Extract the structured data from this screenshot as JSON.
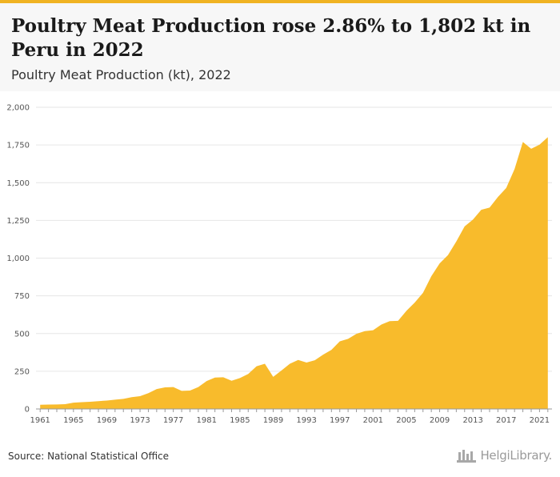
{
  "header": {
    "title": "Poultry Meat Production rose 2.86% to 1,802 kt in Peru in 2022",
    "subtitle": "Poultry Meat Production (kt), 2022"
  },
  "footer": {
    "source": "Source: National Statistical Office",
    "logo_text": "HelgiLibrary."
  },
  "colors": {
    "accent": "#f0b323",
    "area": "#f8bb2c",
    "grid": "#e6e6e6"
  },
  "chart_data": {
    "type": "area",
    "title": "Poultry Meat Production rose 2.86% to 1,802 kt in Peru in 2022",
    "subtitle": "Poultry Meat Production (kt), 2022",
    "xlabel": "",
    "ylabel": "",
    "ylim": [
      0,
      2000
    ],
    "yticks": [
      0,
      250,
      500,
      750,
      1000,
      1250,
      1500,
      1750,
      2000
    ],
    "ytick_labels": [
      "0",
      "250",
      "500",
      "750",
      "1,000",
      "1,250",
      "1,500",
      "1,750",
      "2,000"
    ],
    "xlim": [
      1960.5,
      2022.5
    ],
    "xticks": [
      1961,
      1965,
      1969,
      1973,
      1977,
      1981,
      1985,
      1989,
      1993,
      1997,
      2001,
      2005,
      2009,
      2013,
      2017,
      2021
    ],
    "xtick_labels": [
      "1961",
      "1965",
      "1969",
      "1973",
      "1977",
      "1981",
      "1985",
      "1989",
      "1993",
      "1997",
      "2001",
      "2005",
      "2009",
      "2013",
      "2017",
      "2021"
    ],
    "grid": true,
    "series": [
      {
        "x": [
          1961,
          1962,
          1963,
          1964,
          1965,
          1966,
          1967,
          1968,
          1969,
          1970,
          1971,
          1972,
          1973,
          1974,
          1975,
          1976,
          1977,
          1978,
          1979,
          1980,
          1981,
          1982,
          1983,
          1984,
          1985,
          1986,
          1987,
          1988,
          1989,
          1990,
          1991,
          1992,
          1993,
          1994,
          1995,
          1996,
          1997,
          1998,
          1999,
          2000,
          2001,
          2002,
          2003,
          2004,
          2005,
          2006,
          2007,
          2008,
          2009,
          2010,
          2011,
          2012,
          2013,
          2014,
          2015,
          2016,
          2017,
          2018,
          2019,
          2020,
          2021,
          2022
        ],
        "values": [
          28,
          29,
          30,
          32,
          42,
          45,
          48,
          52,
          56,
          62,
          67,
          78,
          85,
          105,
          132,
          143,
          145,
          120,
          122,
          145,
          185,
          208,
          210,
          187,
          205,
          232,
          283,
          300,
          213,
          255,
          300,
          325,
          308,
          323,
          360,
          392,
          448,
          465,
          498,
          516,
          522,
          560,
          582,
          584,
          650,
          705,
          770,
          880,
          965,
          1020,
          1110,
          1210,
          1255,
          1320,
          1335,
          1405,
          1465,
          1590,
          1770,
          1725,
          1752,
          1802
        ]
      }
    ]
  }
}
